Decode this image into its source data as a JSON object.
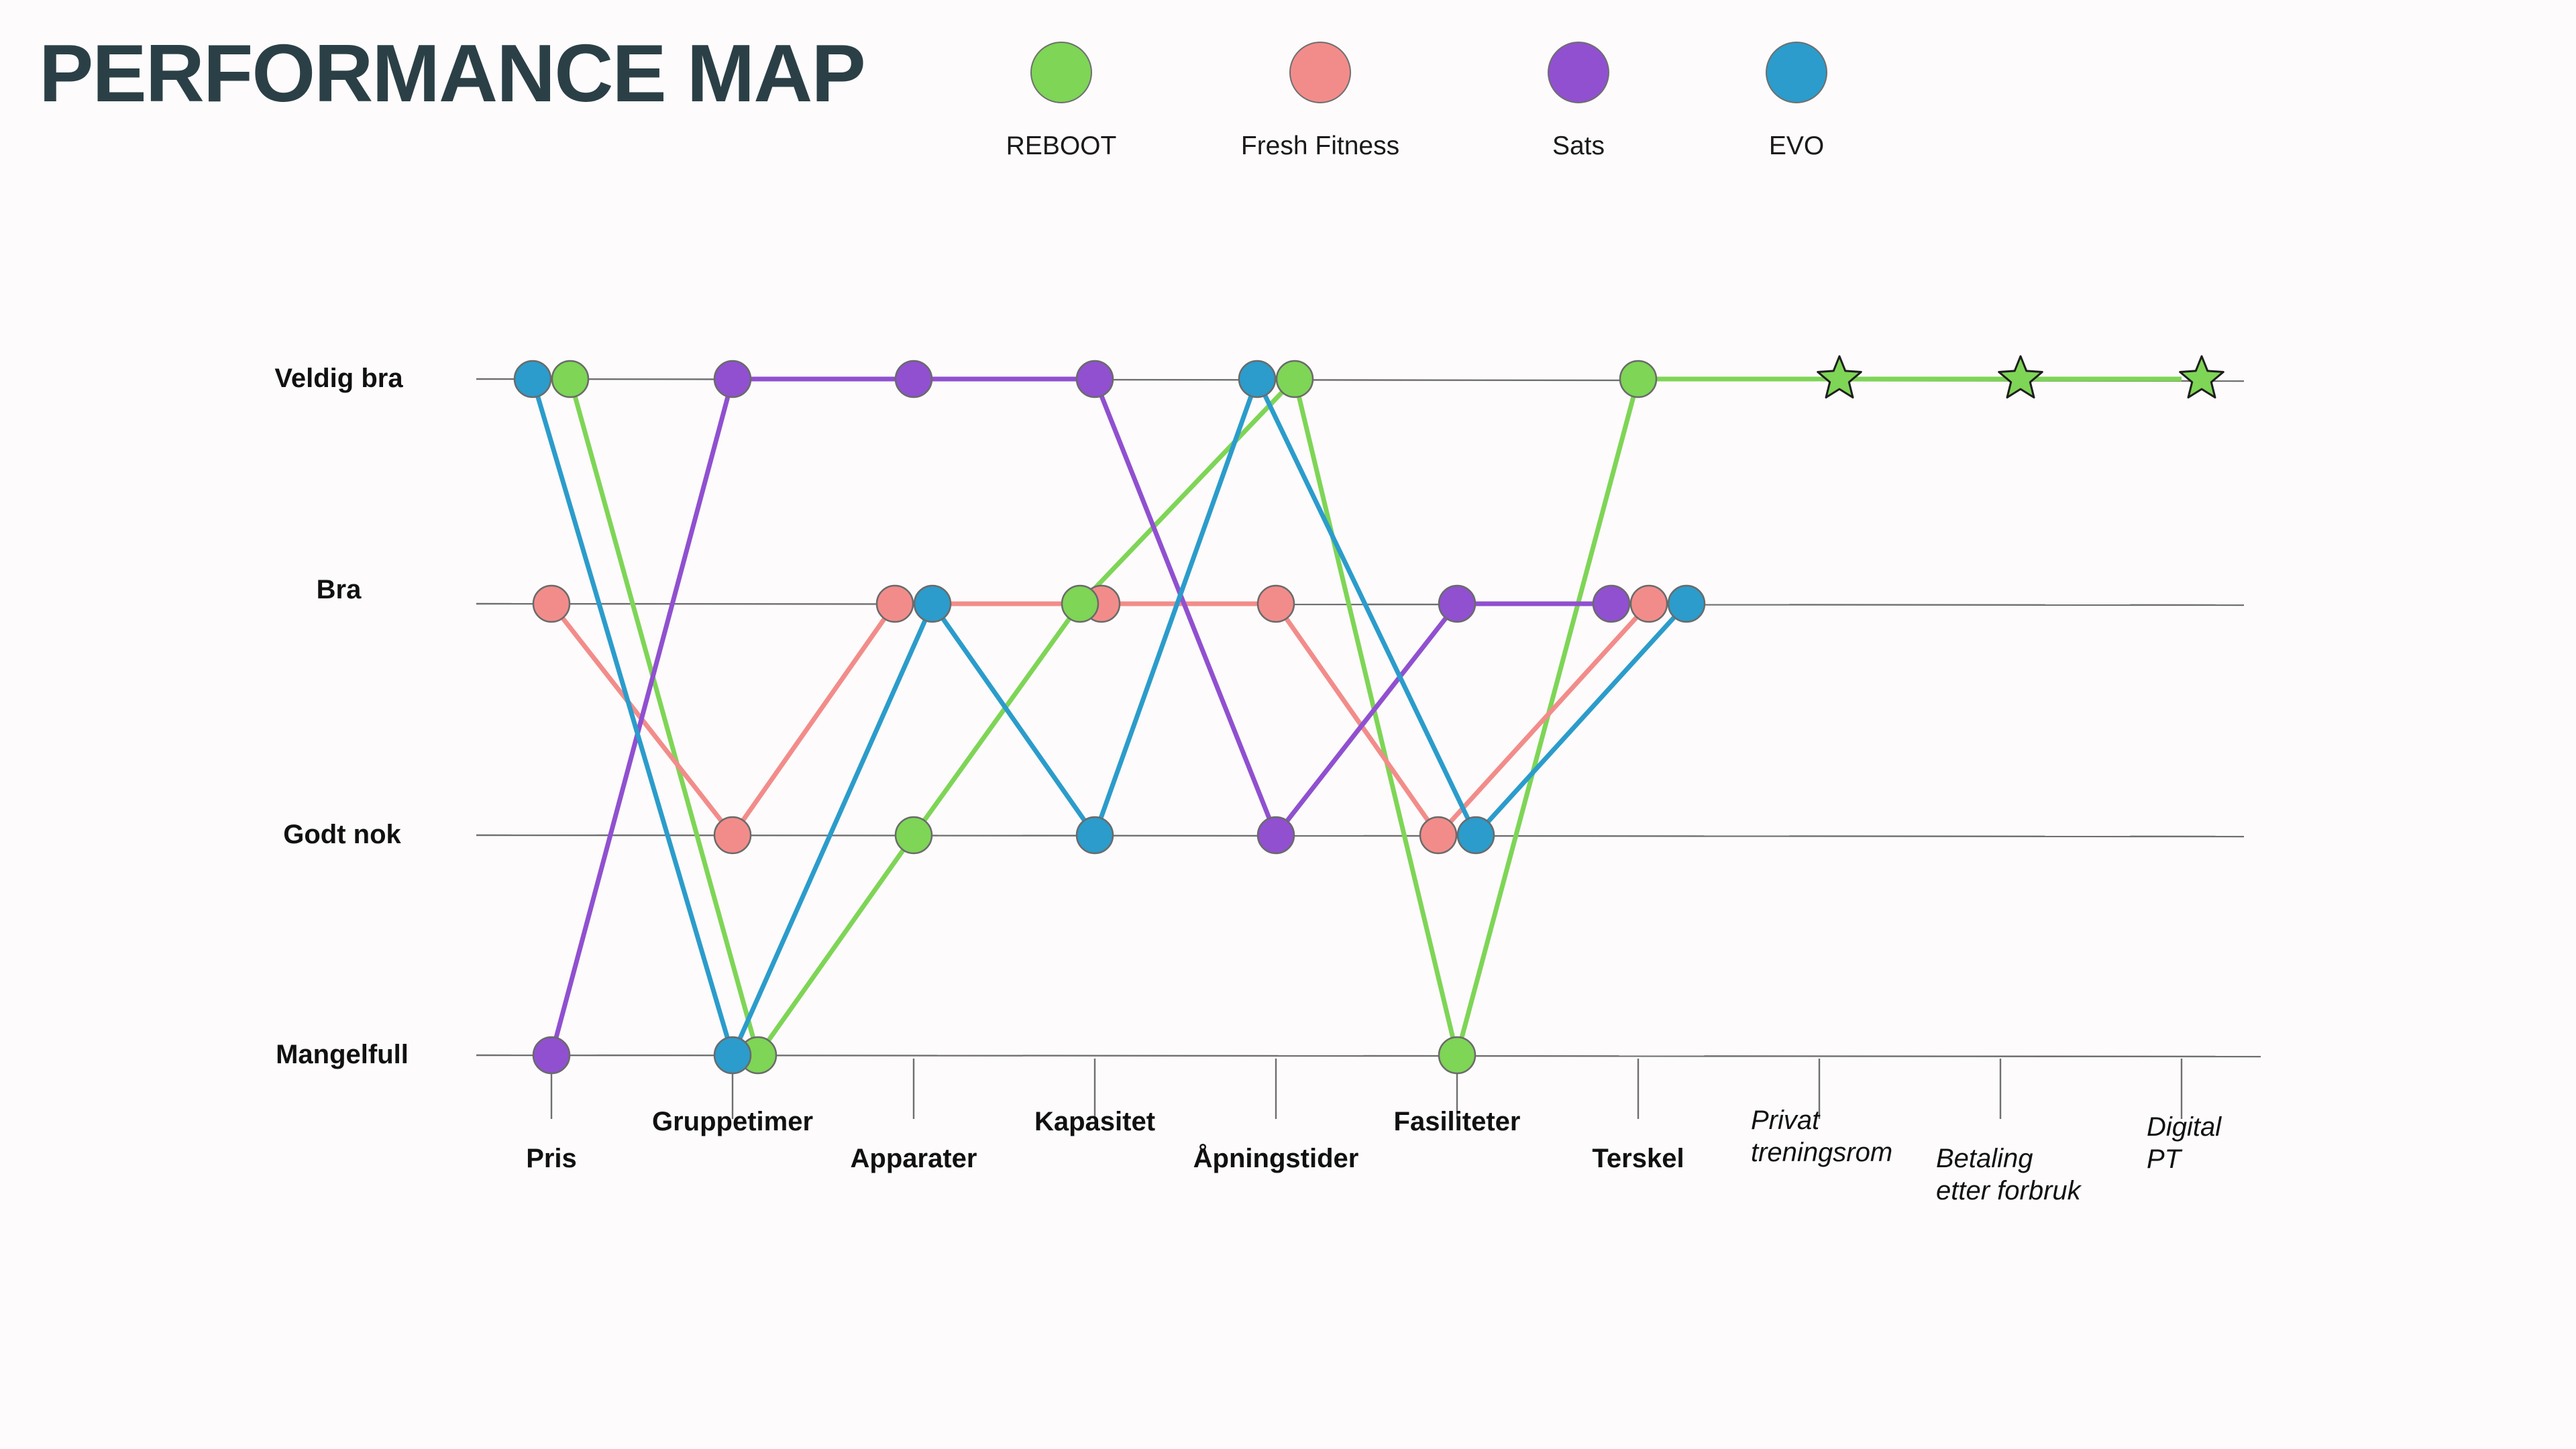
{
  "chart_data": {
    "type": "line",
    "title": "PERFORMANCE MAP",
    "y_levels": [
      "Mangelfull",
      "Godt nok",
      "Bra",
      "Veldig bra"
    ],
    "categories": [
      "Pris",
      "Gruppetimer",
      "Apparater",
      "Kapasitet",
      "Åpningstider",
      "Fasiliteter",
      "Terskel"
    ],
    "future_categories": [
      [
        "Privat",
        "treningsrom"
      ],
      [
        "Betaling",
        "etter forbruk"
      ],
      [
        "Digital",
        "PT"
      ]
    ],
    "future_series": "REBOOT",
    "future_value": 3,
    "series": [
      {
        "name": "REBOOT",
        "color": "#7ed556",
        "values": [
          3,
          0,
          1,
          2,
          3,
          0,
          3
        ]
      },
      {
        "name": "Fresh Fitness",
        "color": "#f28c8a",
        "values": [
          2,
          1,
          2,
          2,
          2,
          1,
          2
        ]
      },
      {
        "name": "Sats",
        "color": "#9050d0",
        "values": [
          0,
          3,
          3,
          3,
          1,
          2,
          2
        ]
      },
      {
        "name": "EVO",
        "color": "#2b9ccb",
        "values": [
          3,
          0,
          2,
          1,
          3,
          1,
          2
        ]
      }
    ]
  }
}
